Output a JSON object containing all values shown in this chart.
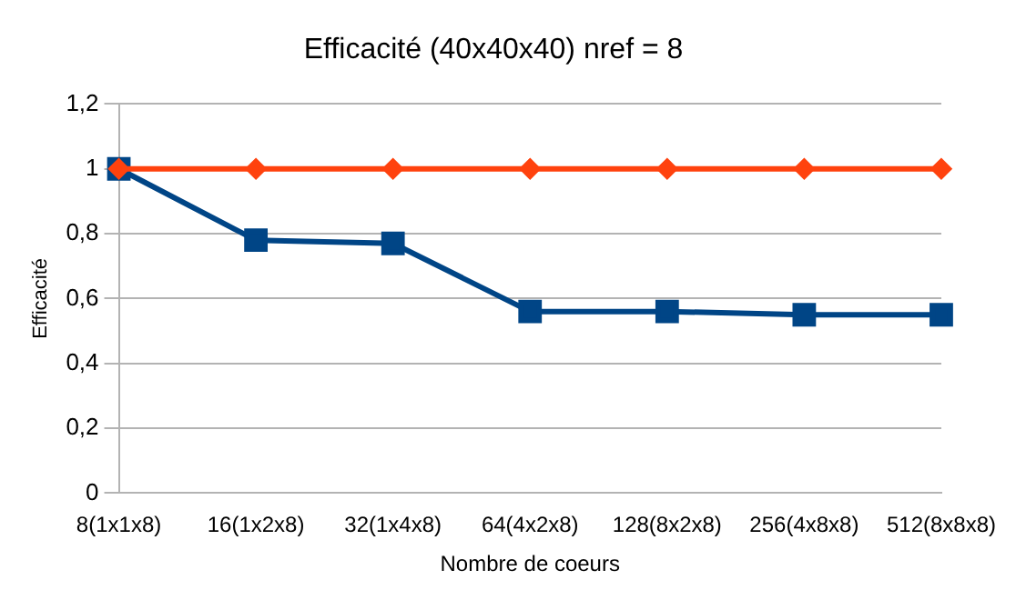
{
  "chart_data": {
    "type": "line",
    "title": "Efficacité (40x40x40) nref = 8",
    "xlabel": "Nombre de coeurs",
    "ylabel": "Efficacité",
    "categories": [
      "8(1x1x8)",
      "16(1x2x8)",
      "32(1x4x8)",
      "64(4x2x8)",
      "128(8x2x8)",
      "256(4x8x8)",
      "512(8x8x8)"
    ],
    "series": [
      {
        "color": "#ff420e",
        "marker": "diamond",
        "values": [
          1,
          1,
          1,
          1,
          1,
          1,
          1
        ]
      },
      {
        "color": "#004586",
        "marker": "square",
        "values": [
          1,
          0.78,
          0.77,
          0.56,
          0.56,
          0.55,
          0.55
        ]
      }
    ],
    "ylim": [
      0,
      1.2
    ],
    "yticks": [
      0,
      {
        "value": 0.2,
        "label": "0,2"
      },
      {
        "value": 0.4,
        "label": "0,4"
      },
      {
        "value": 0.6,
        "label": "0,6"
      },
      {
        "value": 0.8,
        "label": "0,8"
      },
      1,
      {
        "value": 1.2,
        "label": "1,2"
      }
    ],
    "grid": "y",
    "legend": false,
    "line_style": "solid"
  }
}
